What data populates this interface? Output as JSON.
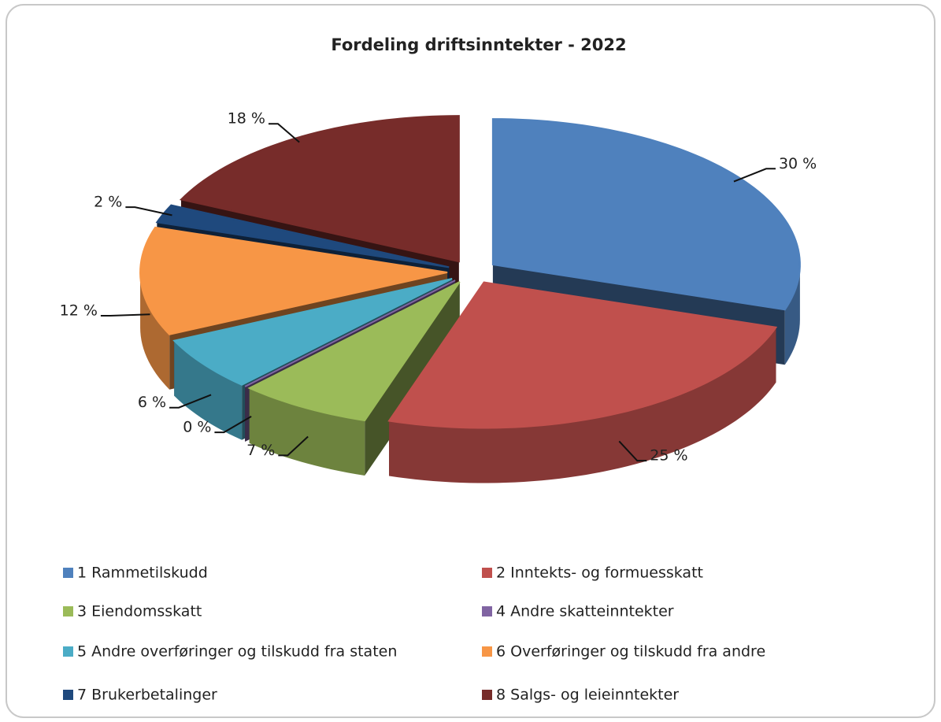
{
  "chart_data": {
    "type": "pie",
    "title": "Fordeling driftsinntekter - 2022",
    "categories": [
      "1 Rammetilskudd",
      "2 Inntekts- og formuesskatt",
      "3 Eiendomsskatt",
      "4 Andre skatteinntekter",
      "5 Andre overføringer og tilskudd fra staten",
      "6 Overføringer og tilskudd fra andre",
      "7 Brukerbetalinger",
      "8 Salgs- og leieinntekter"
    ],
    "values": [
      30,
      25,
      7,
      0,
      6,
      12,
      2,
      18
    ],
    "value_labels": [
      "30 %",
      "25 %",
      "7 %",
      "0 %",
      "6 %",
      "12 %",
      "2 %",
      "18 %"
    ],
    "colors": [
      "#4f81bd",
      "#c0504d",
      "#9bbb59",
      "#8064a2",
      "#4bacc6",
      "#f79646",
      "#1f497d",
      "#772c2a"
    ]
  }
}
